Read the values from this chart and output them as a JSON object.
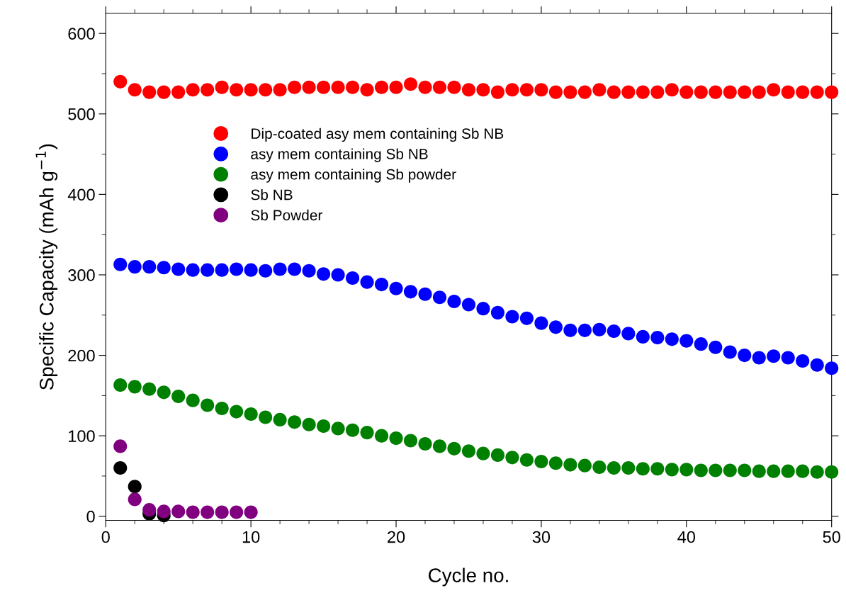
{
  "chart_data": {
    "type": "scatter",
    "xlabel": "Cycle no.",
    "ylabel": "Specific Capacity (mAh g$^{−1}$)",
    "xlim": [
      0,
      50
    ],
    "ylim": [
      -5,
      625
    ],
    "xticks": [
      0,
      {
        "value": 2,
        "label": null
      },
      {
        "value": 4,
        "label": null
      },
      {
        "value": 6,
        "label": null
      },
      {
        "value": 8,
        "label": null
      },
      10,
      {
        "value": 12,
        "label": null
      },
      {
        "value": 14,
        "label": null
      },
      {
        "value": 16,
        "label": null
      },
      {
        "value": 18,
        "label": null
      },
      20,
      {
        "value": 22,
        "label": null
      },
      {
        "value": 24,
        "label": null
      },
      {
        "value": 26,
        "label": null
      },
      {
        "value": 28,
        "label": null
      },
      30,
      {
        "value": 32,
        "label": null
      },
      {
        "value": 34,
        "label": null
      },
      {
        "value": 36,
        "label": null
      },
      {
        "value": 38,
        "label": null
      },
      40,
      {
        "value": 42,
        "label": null
      },
      {
        "value": 44,
        "label": null
      },
      {
        "value": 46,
        "label": null
      },
      {
        "value": 48,
        "label": null
      },
      50
    ],
    "yticks": [
      0,
      {
        "value": 50,
        "label": null
      },
      100,
      {
        "value": 150,
        "label": null
      },
      200,
      {
        "value": 250,
        "label": null
      },
      300,
      {
        "value": 350,
        "label": null
      },
      400,
      {
        "value": 450,
        "label": null
      },
      500,
      {
        "value": 550,
        "label": null
      },
      600
    ],
    "marker": "circle",
    "legend": "top left",
    "grid": false,
    "x": [
      1,
      2,
      3,
      4,
      5,
      6,
      7,
      8,
      9,
      10,
      11,
      12,
      13,
      14,
      15,
      16,
      17,
      18,
      19,
      20,
      21,
      22,
      23,
      24,
      25,
      26,
      27,
      28,
      29,
      30,
      31,
      32,
      33,
      34,
      35,
      36,
      37,
      38,
      39,
      40,
      41,
      42,
      43,
      44,
      45,
      46,
      47,
      48,
      49,
      50
    ],
    "series": [
      {
        "name": "Dip-coated asy mem containing Sb NB",
        "color": "#ff0000",
        "values": [
          540,
          530,
          527,
          527,
          527,
          530,
          530,
          533,
          530,
          530,
          530,
          530,
          533,
          533,
          533,
          533,
          533,
          530,
          533,
          533,
          537,
          533,
          533,
          533,
          530,
          530,
          527,
          530,
          530,
          530,
          527,
          527,
          527,
          530,
          527,
          527,
          527,
          527,
          530,
          527,
          527,
          527,
          527,
          527,
          527,
          530,
          527,
          527,
          527,
          527
        ]
      },
      {
        "name": "asy mem containing Sb NB",
        "color": "#0000ff",
        "values": [
          313,
          310,
          310,
          309,
          307,
          306,
          306,
          306,
          307,
          306,
          305,
          307,
          307,
          305,
          301,
          300,
          296,
          291,
          288,
          283,
          279,
          276,
          272,
          267,
          263,
          258,
          253,
          248,
          246,
          240,
          235,
          231,
          231,
          232,
          230,
          227,
          223,
          222,
          220,
          218,
          214,
          210,
          204,
          200,
          197,
          199,
          197,
          193,
          188,
          184
        ]
      },
      {
        "name": "asy mem containing Sb powder",
        "color": "#008000",
        "values": [
          163,
          161,
          158,
          154,
          149,
          144,
          138,
          134,
          130,
          127,
          123,
          120,
          117,
          114,
          112,
          109,
          107,
          104,
          100,
          97,
          94,
          90,
          87,
          84,
          81,
          78,
          76,
          73,
          70,
          68,
          66,
          64,
          63,
          61,
          60,
          60,
          59,
          59,
          58,
          58,
          57,
          57,
          57,
          57,
          56,
          56,
          56,
          56,
          55,
          55
        ]
      },
      {
        "name": "Sb NB",
        "color": "#000000",
        "x": [
          1,
          2,
          3,
          4
        ],
        "values": [
          60,
          37,
          3,
          1
        ]
      },
      {
        "name": "Sb Powder",
        "color": "#800080",
        "x": [
          1,
          2,
          3,
          4,
          5,
          6,
          7,
          8,
          9,
          10
        ],
        "values": [
          87,
          21,
          8,
          6,
          6,
          5,
          5,
          5,
          5,
          5
        ]
      }
    ]
  }
}
